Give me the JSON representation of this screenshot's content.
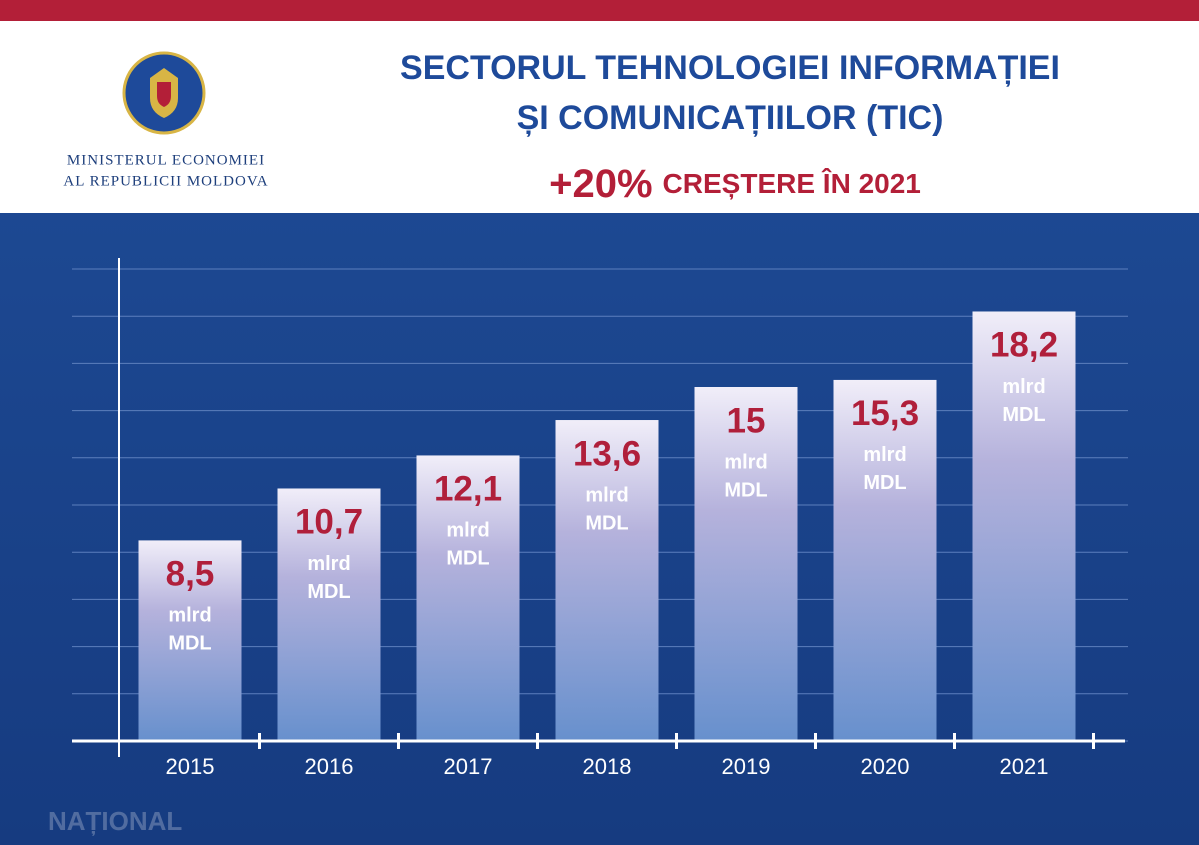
{
  "header": {
    "ministry": [
      "MINISTERUL ECONOMIEI",
      "AL REPUBLICII MOLDOVA"
    ],
    "watermark": "NAȚIONAL"
  },
  "chart_data": {
    "type": "bar",
    "title": [
      "SECTORUL TEHNOLOGIEI INFORMAȚIEI",
      "ȘI COMUNICAȚIILOR (TIC)"
    ],
    "subtitle_highlight": "+20%",
    "subtitle": "CREȘTERE ÎN 2021",
    "unit_label": [
      "mlrd",
      "MDL"
    ],
    "categories": [
      "2015",
      "2016",
      "2017",
      "2018",
      "2019",
      "2020",
      "2021"
    ],
    "values": [
      8.5,
      10.7,
      12.1,
      13.6,
      15,
      15.3,
      18.2
    ],
    "value_labels": [
      "8,5",
      "10,7",
      "12,1",
      "13,6",
      "15",
      "15,3",
      "18,2"
    ],
    "label_color": "#b01f3b",
    "ylim": [
      0,
      20
    ],
    "yticks": [
      0,
      2,
      4,
      6,
      8,
      10,
      12,
      14,
      16,
      18,
      20
    ],
    "grid": true
  }
}
